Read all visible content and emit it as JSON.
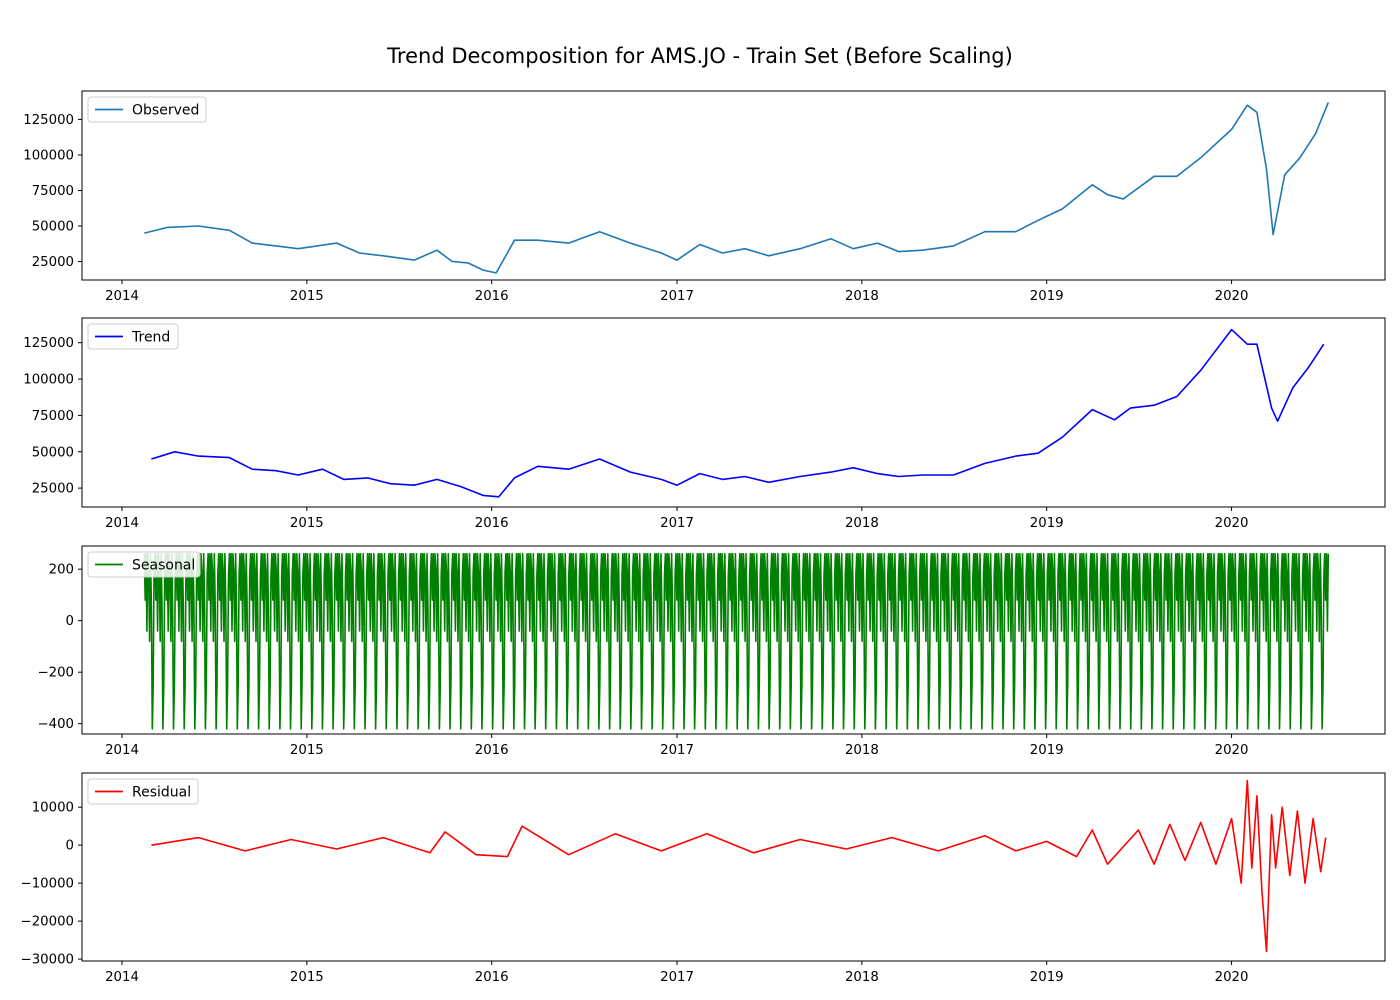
{
  "title": "Trend Decomposition for AMS.JO - Train Set (Before Scaling)",
  "chart_data": [
    {
      "type": "line",
      "legend": "Observed",
      "legend_position": "top-left",
      "color": "#1f77b4",
      "x_range": [
        "2013-10-14",
        "2020-10-30"
      ],
      "y_range": [
        12000,
        145000
      ],
      "x_ticks": [
        "2014",
        "2015",
        "2016",
        "2017",
        "2018",
        "2019",
        "2020"
      ],
      "y_ticks": [
        25000,
        50000,
        75000,
        100000,
        125000
      ],
      "series": [
        {
          "name": "Observed",
          "x": [
            "2014-02-14",
            "2014-04-01",
            "2014-06-01",
            "2014-08-01",
            "2014-09-15",
            "2014-11-01",
            "2014-12-15",
            "2015-03-01",
            "2015-04-15",
            "2015-06-01",
            "2015-08-01",
            "2015-09-15",
            "2015-10-15",
            "2015-11-15",
            "2015-12-15",
            "2016-01-10",
            "2016-02-15",
            "2016-04-01",
            "2016-06-01",
            "2016-08-01",
            "2016-10-01",
            "2016-12-01",
            "2017-01-01",
            "2017-02-15",
            "2017-04-01",
            "2017-05-15",
            "2017-07-01",
            "2017-09-01",
            "2017-11-01",
            "2017-12-15",
            "2018-02-01",
            "2018-03-15",
            "2018-05-01",
            "2018-07-01",
            "2018-09-01",
            "2018-11-01",
            "2018-12-15",
            "2019-02-01",
            "2019-04-01",
            "2019-05-01",
            "2019-06-01",
            "2019-08-01",
            "2019-09-15",
            "2019-11-01",
            "2020-01-01",
            "2020-02-01",
            "2020-02-20",
            "2020-03-10",
            "2020-03-23",
            "2020-04-15",
            "2020-05-15",
            "2020-06-15",
            "2020-07-10"
          ],
          "y": [
            45000,
            49000,
            50000,
            47000,
            38000,
            36000,
            34000,
            38000,
            31000,
            29000,
            26000,
            33000,
            25000,
            24000,
            19000,
            17000,
            40000,
            40000,
            38000,
            46000,
            38000,
            31000,
            26000,
            37000,
            31000,
            34000,
            29000,
            34000,
            41000,
            34000,
            38000,
            32000,
            33000,
            36000,
            46000,
            46000,
            54000,
            62000,
            79000,
            72000,
            69000,
            85000,
            85000,
            98000,
            118000,
            135000,
            130000,
            90000,
            44000,
            86000,
            98000,
            115000,
            137000
          ]
        }
      ]
    },
    {
      "type": "line",
      "legend": "Trend",
      "legend_position": "top-left",
      "color": "#0000ff",
      "x_range": [
        "2013-10-14",
        "2020-10-30"
      ],
      "y_range": [
        12000,
        142000
      ],
      "x_ticks": [
        "2014",
        "2015",
        "2016",
        "2017",
        "2018",
        "2019",
        "2020"
      ],
      "y_ticks": [
        25000,
        50000,
        75000,
        100000,
        125000
      ],
      "series": [
        {
          "name": "Trend",
          "x": [
            "2014-02-28",
            "2014-04-15",
            "2014-06-01",
            "2014-08-01",
            "2014-09-15",
            "2014-11-01",
            "2014-12-15",
            "2015-02-01",
            "2015-03-15",
            "2015-05-01",
            "2015-06-15",
            "2015-08-01",
            "2015-09-15",
            "2015-11-01",
            "2015-12-15",
            "2016-01-15",
            "2016-02-15",
            "2016-04-01",
            "2016-06-01",
            "2016-08-01",
            "2016-10-01",
            "2016-12-01",
            "2017-01-01",
            "2017-02-15",
            "2017-04-01",
            "2017-05-15",
            "2017-07-01",
            "2017-09-01",
            "2017-11-01",
            "2017-12-15",
            "2018-02-01",
            "2018-03-15",
            "2018-05-01",
            "2018-07-01",
            "2018-09-01",
            "2018-11-01",
            "2018-12-15",
            "2019-02-01",
            "2019-04-01",
            "2019-05-15",
            "2019-06-15",
            "2019-08-01",
            "2019-09-15",
            "2019-11-01",
            "2020-01-01",
            "2020-02-01",
            "2020-02-20",
            "2020-03-20",
            "2020-04-01",
            "2020-05-01",
            "2020-06-01",
            "2020-07-01"
          ],
          "y": [
            45000,
            50000,
            47000,
            46000,
            38000,
            37000,
            34000,
            38000,
            31000,
            32000,
            28000,
            27000,
            31000,
            26000,
            20000,
            19000,
            32000,
            40000,
            38000,
            45000,
            36000,
            31000,
            27000,
            35000,
            31000,
            33000,
            29000,
            33000,
            36000,
            39000,
            35000,
            33000,
            34000,
            34000,
            42000,
            47000,
            49000,
            60000,
            79000,
            72000,
            80000,
            82000,
            88000,
            106000,
            134000,
            124000,
            124000,
            80000,
            71000,
            94000,
            108000,
            124000
          ]
        }
      ]
    },
    {
      "type": "line",
      "legend": "Seasonal",
      "legend_position": "top-left",
      "color": "#008000",
      "x_range": [
        "2013-10-14",
        "2020-10-30"
      ],
      "y_range": [
        -440,
        290
      ],
      "x_ticks": [
        "2014",
        "2015",
        "2016",
        "2017",
        "2018",
        "2019",
        "2020"
      ],
      "y_ticks": [
        -400,
        -200,
        0,
        200
      ],
      "series": [
        {
          "name": "Seasonal",
          "start": "2014-02-14",
          "end": "2020-07-10",
          "period_days": 21,
          "cycle_values": [
            260,
            80,
            260,
            -40,
            260,
            190,
            -80,
            260,
            60,
            -420,
            -250,
            180
          ]
        }
      ]
    },
    {
      "type": "line",
      "legend": "Residual",
      "legend_position": "top-left",
      "color": "#ff0000",
      "x_range": [
        "2013-10-14",
        "2020-10-30"
      ],
      "y_range": [
        -30500,
        19000
      ],
      "x_ticks": [
        "2014",
        "2015",
        "2016",
        "2017",
        "2018",
        "2019",
        "2020"
      ],
      "y_ticks": [
        -30000,
        -20000,
        -10000,
        0,
        10000
      ],
      "series": [
        {
          "name": "Residual",
          "x": [
            "2014-02-28",
            "2014-06-01",
            "2014-09-01",
            "2014-12-01",
            "2015-03-01",
            "2015-06-01",
            "2015-09-01",
            "2015-10-01",
            "2015-12-01",
            "2016-02-01",
            "2016-03-01",
            "2016-06-01",
            "2016-09-01",
            "2016-12-01",
            "2017-03-01",
            "2017-06-01",
            "2017-09-01",
            "2017-12-01",
            "2018-03-01",
            "2018-06-01",
            "2018-09-01",
            "2018-11-01",
            "2019-01-01",
            "2019-03-01",
            "2019-04-01",
            "2019-05-01",
            "2019-07-01",
            "2019-08-01",
            "2019-09-01",
            "2019-10-01",
            "2019-11-01",
            "2019-12-01",
            "2020-01-01",
            "2020-01-20",
            "2020-02-01",
            "2020-02-10",
            "2020-02-20",
            "2020-03-01",
            "2020-03-10",
            "2020-03-20",
            "2020-03-28",
            "2020-04-10",
            "2020-04-25",
            "2020-05-10",
            "2020-05-25",
            "2020-06-10",
            "2020-06-25",
            "2020-07-05"
          ],
          "y": [
            0,
            2000,
            -1500,
            1500,
            -1000,
            2000,
            -2000,
            3500,
            -2500,
            -3000,
            5000,
            -2500,
            3000,
            -1500,
            3000,
            -2000,
            1500,
            -1000,
            2000,
            -1500,
            2500,
            -1500,
            1000,
            -3000,
            4000,
            -5000,
            4000,
            -5000,
            5500,
            -4000,
            6000,
            -5000,
            7000,
            -10000,
            17000,
            -6000,
            13000,
            -12000,
            -28000,
            8000,
            -6000,
            10000,
            -8000,
            9000,
            -10000,
            7000,
            -7000,
            2000
          ]
        }
      ]
    }
  ]
}
